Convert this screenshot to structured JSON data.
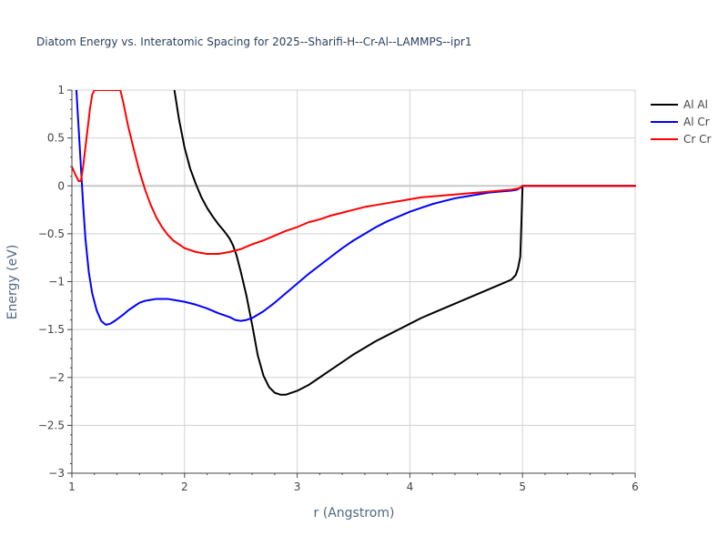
{
  "chart_data": {
    "type": "line",
    "title": "Diatom Energy vs. Interatomic Spacing for 2025--Sharifi-H--Cr-Al--LAMMPS--ipr1",
    "xlabel": "r (Angstrom)",
    "ylabel": "Energy (eV)",
    "xlim": [
      1,
      6
    ],
    "ylim": [
      -3,
      1
    ],
    "xticks": [
      1,
      2,
      3,
      4,
      5,
      6
    ],
    "xtick_labels": [
      "1",
      "2",
      "3",
      "4",
      "5",
      "6"
    ],
    "yticks": [
      1,
      0.5,
      0,
      -0.5,
      -1,
      -1.5,
      -2,
      -2.5,
      -3
    ],
    "ytick_labels": [
      "1",
      "0.5",
      "0",
      "−0.5",
      "−1",
      "−1.5",
      "−2",
      "−2.5",
      "−3"
    ],
    "grid": true,
    "legend_position": "top-right",
    "series": [
      {
        "name": "Al Al",
        "color": "#000000",
        "x": [
          1.91,
          1.95,
          2.0,
          2.05,
          2.1,
          2.15,
          2.2,
          2.25,
          2.3,
          2.35,
          2.4,
          2.43,
          2.46,
          2.5,
          2.55,
          2.6,
          2.65,
          2.7,
          2.75,
          2.8,
          2.85,
          2.9,
          2.95,
          3.0,
          3.1,
          3.2,
          3.3,
          3.4,
          3.5,
          3.6,
          3.7,
          3.8,
          3.9,
          4.0,
          4.1,
          4.2,
          4.3,
          4.4,
          4.5,
          4.6,
          4.7,
          4.8,
          4.9,
          4.94,
          4.96,
          4.98,
          4.99,
          5.0,
          5.2,
          5.4,
          5.6,
          5.8,
          6.0
        ],
        "y": [
          1.0,
          0.7,
          0.4,
          0.18,
          0.02,
          -0.12,
          -0.23,
          -0.32,
          -0.4,
          -0.47,
          -0.55,
          -0.62,
          -0.72,
          -0.9,
          -1.15,
          -1.45,
          -1.77,
          -1.98,
          -2.1,
          -2.16,
          -2.18,
          -2.18,
          -2.16,
          -2.14,
          -2.08,
          -2.0,
          -1.92,
          -1.84,
          -1.76,
          -1.69,
          -1.62,
          -1.56,
          -1.5,
          -1.44,
          -1.38,
          -1.33,
          -1.28,
          -1.23,
          -1.18,
          -1.13,
          -1.08,
          -1.03,
          -0.98,
          -0.93,
          -0.86,
          -0.74,
          -0.4,
          0.0,
          0.0,
          0.0,
          0.0,
          0.0,
          0.0
        ]
      },
      {
        "name": "Al Cr",
        "color": "#0000ff",
        "x": [
          1.04,
          1.06,
          1.08,
          1.1,
          1.12,
          1.15,
          1.18,
          1.22,
          1.26,
          1.3,
          1.34,
          1.38,
          1.45,
          1.5,
          1.55,
          1.6,
          1.65,
          1.7,
          1.75,
          1.8,
          1.85,
          1.9,
          2.0,
          2.1,
          2.2,
          2.3,
          2.4,
          2.45,
          2.5,
          2.55,
          2.6,
          2.7,
          2.8,
          2.9,
          3.0,
          3.1,
          3.2,
          3.3,
          3.4,
          3.5,
          3.6,
          3.7,
          3.8,
          3.9,
          4.0,
          4.1,
          4.2,
          4.3,
          4.4,
          4.5,
          4.6,
          4.7,
          4.8,
          4.9,
          4.95,
          4.98,
          5.0,
          5.2,
          5.4,
          5.6,
          5.8,
          6.0
        ],
        "y": [
          1.0,
          0.6,
          0.2,
          -0.2,
          -0.55,
          -0.9,
          -1.12,
          -1.3,
          -1.41,
          -1.45,
          -1.44,
          -1.41,
          -1.35,
          -1.3,
          -1.26,
          -1.22,
          -1.2,
          -1.19,
          -1.18,
          -1.18,
          -1.18,
          -1.19,
          -1.21,
          -1.24,
          -1.28,
          -1.33,
          -1.37,
          -1.4,
          -1.41,
          -1.4,
          -1.38,
          -1.31,
          -1.22,
          -1.12,
          -1.02,
          -0.92,
          -0.83,
          -0.74,
          -0.65,
          -0.57,
          -0.5,
          -0.43,
          -0.37,
          -0.32,
          -0.27,
          -0.23,
          -0.19,
          -0.16,
          -0.13,
          -0.11,
          -0.09,
          -0.07,
          -0.06,
          -0.05,
          -0.04,
          -0.02,
          0.0,
          0.0,
          0.0,
          0.0,
          0.0,
          0.0
        ]
      },
      {
        "name": "Cr Cr",
        "color": "#ff0000",
        "x": [
          1.0,
          1.03,
          1.06,
          1.08,
          1.1,
          1.12,
          1.14,
          1.16,
          1.18,
          1.2,
          1.43,
          1.46,
          1.5,
          1.55,
          1.6,
          1.65,
          1.7,
          1.75,
          1.8,
          1.85,
          1.9,
          2.0,
          2.1,
          2.2,
          2.3,
          2.4,
          2.5,
          2.6,
          2.7,
          2.8,
          2.9,
          3.0,
          3.1,
          3.2,
          3.3,
          3.4,
          3.5,
          3.6,
          3.7,
          3.8,
          3.9,
          4.0,
          4.1,
          4.2,
          4.3,
          4.4,
          4.5,
          4.6,
          4.7,
          4.8,
          4.9,
          4.95,
          4.98,
          5.0,
          5.2,
          5.4,
          5.6,
          5.8,
          6.0
        ],
        "y": [
          0.2,
          0.12,
          0.05,
          0.05,
          0.2,
          0.4,
          0.6,
          0.8,
          0.95,
          1.0,
          1.0,
          0.85,
          0.62,
          0.38,
          0.15,
          -0.04,
          -0.2,
          -0.33,
          -0.43,
          -0.51,
          -0.57,
          -0.65,
          -0.69,
          -0.71,
          -0.71,
          -0.69,
          -0.66,
          -0.61,
          -0.57,
          -0.52,
          -0.47,
          -0.43,
          -0.38,
          -0.35,
          -0.31,
          -0.28,
          -0.25,
          -0.22,
          -0.2,
          -0.18,
          -0.16,
          -0.14,
          -0.12,
          -0.11,
          -0.1,
          -0.09,
          -0.08,
          -0.07,
          -0.06,
          -0.05,
          -0.04,
          -0.03,
          -0.02,
          0.0,
          0.0,
          0.0,
          0.0,
          0.0,
          0.0
        ]
      }
    ]
  }
}
